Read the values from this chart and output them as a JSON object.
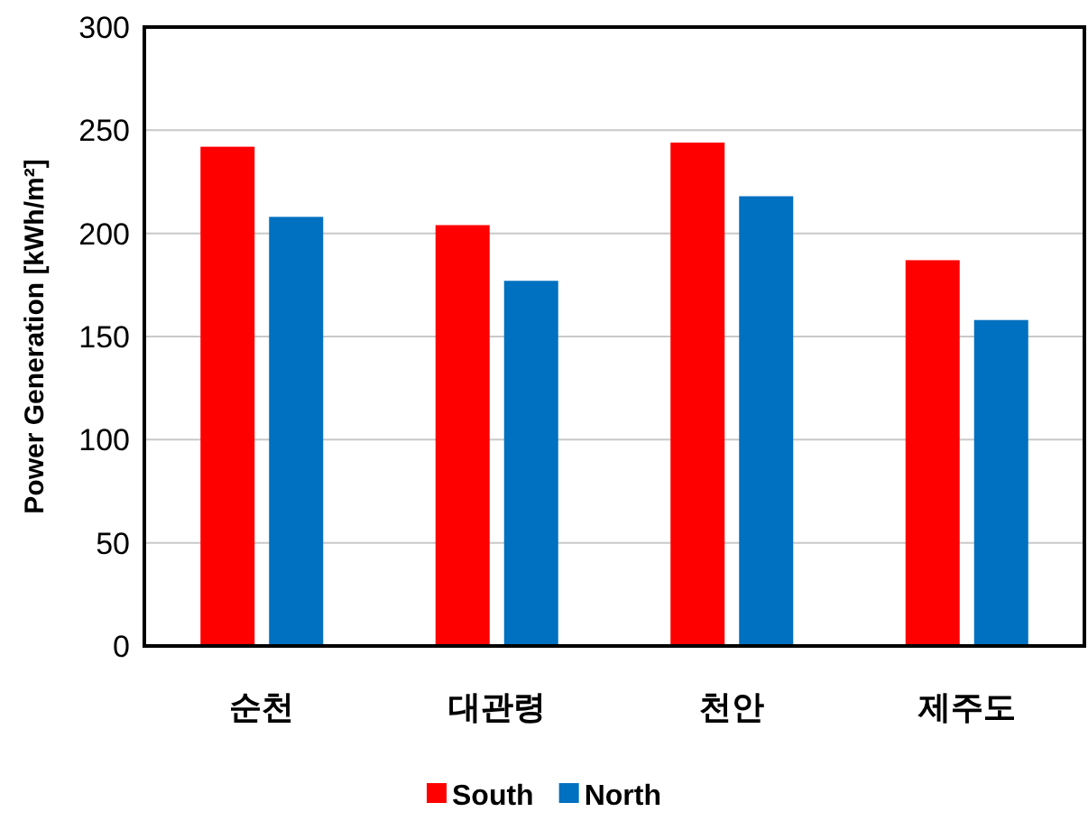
{
  "chart_data": {
    "type": "bar",
    "ylabel": "Power Generation [kWh/m²]",
    "categories": [
      "순천",
      "대관령",
      "천안",
      "제주도"
    ],
    "series": [
      {
        "name": "South",
        "color": "#ff0000",
        "values": [
          242,
          204,
          244,
          187
        ]
      },
      {
        "name": "North",
        "color": "#0070c0",
        "values": [
          208,
          177,
          218,
          158
        ]
      }
    ],
    "ylim": [
      0,
      300
    ],
    "yticks": [
      0,
      50,
      100,
      150,
      200,
      250,
      300
    ],
    "grid": "y",
    "legend": "bottom"
  }
}
